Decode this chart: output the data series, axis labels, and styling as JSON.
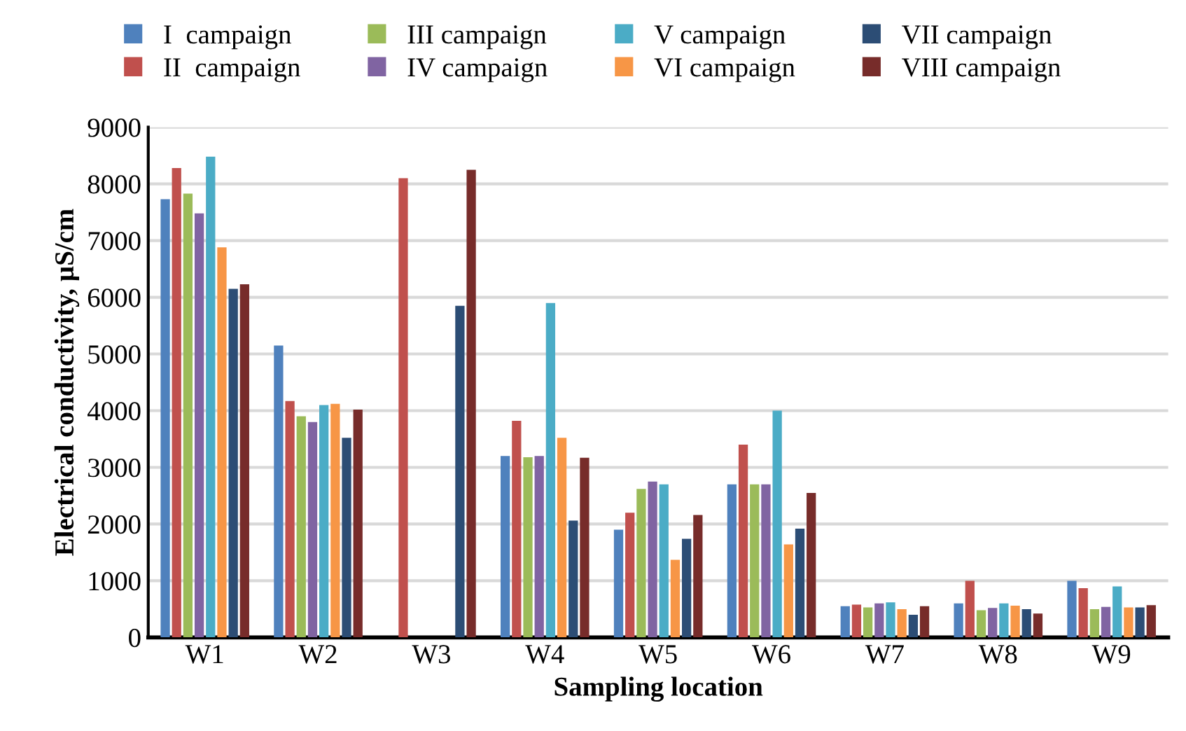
{
  "chart_data": {
    "type": "bar",
    "xlabel": "Sampling location",
    "ylabel": "Electrical conductivity, µS/cm",
    "categories": [
      "W1",
      "W2",
      "W3",
      "W4",
      "W5",
      "W6",
      "W7",
      "W8",
      "W9"
    ],
    "series": [
      {
        "name": "I  campaign",
        "color": "#4f81bd",
        "values": [
          7730,
          5150,
          null,
          3200,
          1900,
          2700,
          550,
          600,
          1000
        ]
      },
      {
        "name": "II  campaign",
        "color": "#c0504d",
        "values": [
          8280,
          4170,
          8100,
          3820,
          2200,
          3400,
          580,
          1000,
          870
        ]
      },
      {
        "name": "III campaign",
        "color": "#9bbb59",
        "values": [
          7830,
          3900,
          null,
          3180,
          2620,
          2700,
          530,
          480,
          500
        ]
      },
      {
        "name": "IV campaign",
        "color": "#8064a2",
        "values": [
          7480,
          3800,
          null,
          3200,
          2750,
          2700,
          600,
          520,
          540
        ]
      },
      {
        "name": "V campaign",
        "color": "#4bacc6",
        "values": [
          8480,
          4100,
          null,
          5900,
          2700,
          4000,
          620,
          600,
          900
        ]
      },
      {
        "name": "VI campaign",
        "color": "#f79646",
        "values": [
          6880,
          4120,
          null,
          3520,
          1370,
          1640,
          500,
          560,
          530
        ]
      },
      {
        "name": "VII campaign",
        "color": "#2c4d75",
        "values": [
          6150,
          3520,
          5850,
          2060,
          1740,
          1920,
          400,
          500,
          530
        ]
      },
      {
        "name": "VIII campaign",
        "color": "#772c2a",
        "values": [
          6230,
          4020,
          8250,
          3170,
          2160,
          2550,
          550,
          420,
          570
        ]
      }
    ],
    "ylim": [
      0,
      9000
    ],
    "yticks": [
      0,
      1000,
      2000,
      3000,
      4000,
      5000,
      6000,
      7000,
      8000,
      9000
    ],
    "grid": "y",
    "legend": "top"
  }
}
